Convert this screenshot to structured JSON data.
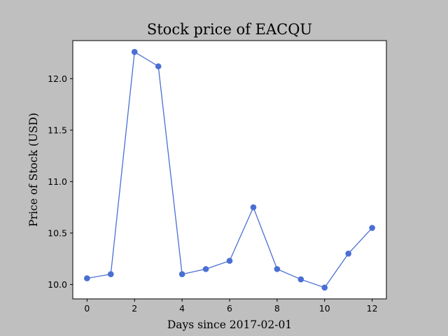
{
  "chart_data": {
    "type": "line",
    "title": "Stock price of EACQU",
    "xlabel": "Days since 2017-02-01",
    "ylabel": "Price of Stock (USD)",
    "x": [
      0,
      1,
      2,
      3,
      4,
      5,
      6,
      7,
      8,
      9,
      10,
      11,
      12
    ],
    "series": [
      {
        "values": [
          10.06,
          10.1,
          12.26,
          12.12,
          10.1,
          10.15,
          10.23,
          10.75,
          10.15,
          10.05,
          9.97,
          10.3,
          10.55
        ]
      }
    ],
    "xlim": [
      -0.6,
      12.6
    ],
    "ylim": [
      9.86,
      12.37
    ],
    "xticks": [
      0,
      2,
      4,
      6,
      8,
      10,
      12
    ],
    "xtick_labels": [
      "0",
      "2",
      "4",
      "6",
      "8",
      "10",
      "12"
    ],
    "yticks": [
      10.0,
      10.5,
      11.0,
      11.5,
      12.0
    ],
    "ytick_labels": [
      "10.0",
      "10.5",
      "11.0",
      "11.5",
      "12.0"
    ],
    "grid": false,
    "line_color": "#4a6fd4",
    "marker": "circle"
  },
  "colors": {
    "figure_background": "#bfbfbf",
    "plot_background": "#ffffff"
  }
}
